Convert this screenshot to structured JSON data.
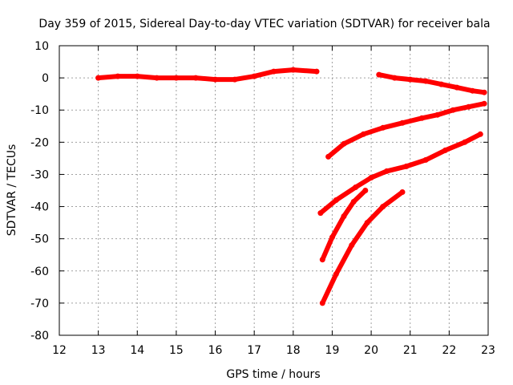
{
  "chart_data": {
    "type": "line",
    "title": "Day 359 of 2015, Sidereal Day-to-day VTEC variation (SDTVAR) for receiver bala",
    "xlabel": "GPS time / hours",
    "ylabel": "SDTVAR / TECUs",
    "xlim": [
      12,
      23
    ],
    "ylim": [
      -80,
      10
    ],
    "xticks": [
      12,
      13,
      14,
      15,
      16,
      17,
      18,
      19,
      20,
      21,
      22,
      23
    ],
    "yticks": [
      10,
      0,
      -10,
      -20,
      -30,
      -40,
      -50,
      -60,
      -70,
      -80
    ],
    "grid": true,
    "legend": "none",
    "color": "#ff0000",
    "series": [
      {
        "x": [
          13.0,
          13.5,
          14.0,
          14.5,
          15.0,
          15.5,
          16.0,
          16.5,
          17.0,
          17.5,
          18.0,
          18.6
        ],
        "y": [
          0.0,
          0.5,
          0.5,
          0.0,
          0.0,
          0.0,
          -0.5,
          -0.5,
          0.5,
          2.0,
          2.5,
          2.0
        ]
      },
      {
        "x": [
          20.2,
          20.6,
          21.0,
          21.4,
          21.8,
          22.2,
          22.6,
          22.9
        ],
        "y": [
          1.0,
          0.0,
          -0.5,
          -1.0,
          -2.0,
          -3.0,
          -4.0,
          -4.5
        ]
      },
      {
        "x": [
          18.9,
          19.3,
          19.8,
          20.3,
          20.8,
          21.3,
          21.7,
          22.1,
          22.5,
          22.9
        ],
        "y": [
          -24.5,
          -20.5,
          -17.5,
          -15.5,
          -14.0,
          -12.5,
          -11.5,
          -10.0,
          -9.0,
          -8.0
        ]
      },
      {
        "x": [
          18.7,
          19.1,
          19.6,
          20.0,
          20.4,
          20.9,
          21.4,
          21.9,
          22.4,
          22.8
        ],
        "y": [
          -42.0,
          -38.0,
          -34.0,
          -31.0,
          -29.0,
          -27.5,
          -25.5,
          -22.5,
          -20.0,
          -17.5
        ]
      },
      {
        "x": [
          18.75,
          19.0,
          19.3,
          19.55,
          19.85
        ],
        "y": [
          -56.5,
          -49.5,
          -43.0,
          -38.5,
          -35.0
        ]
      },
      {
        "x": [
          18.75,
          19.1,
          19.5,
          19.9,
          20.3,
          20.8
        ],
        "y": [
          -70.0,
          -61.0,
          -52.0,
          -45.0,
          -40.0,
          -35.5
        ]
      }
    ]
  }
}
